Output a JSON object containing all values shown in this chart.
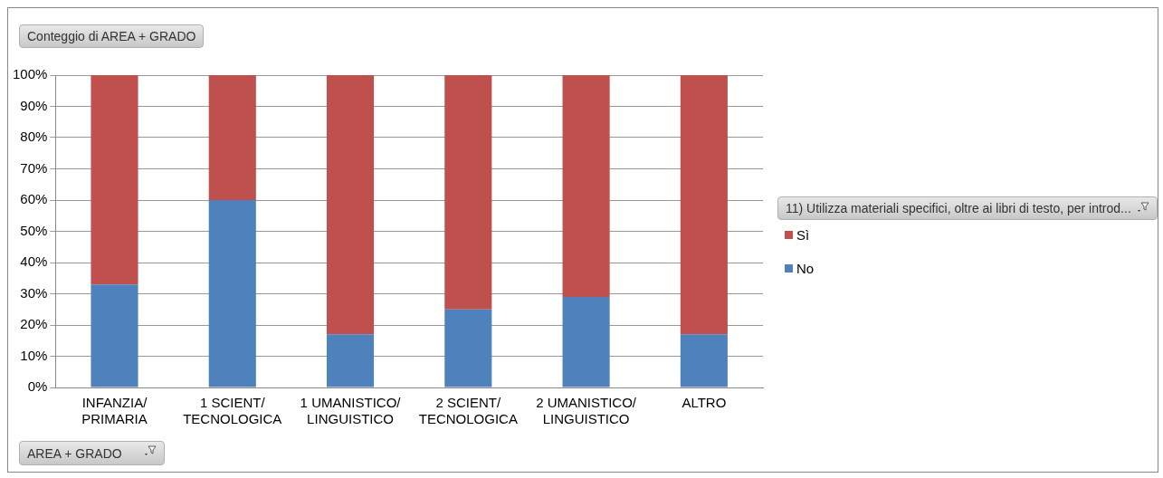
{
  "chart_data": {
    "type": "bar",
    "title": "Conteggio di AREA + GRADO",
    "xlabel": "AREA + GRADO",
    "legend_title": "11) Utilizza materiali specifici, oltre ai libri di testo, per introd...",
    "categories": [
      "INFANZIA/ PRIMARIA",
      "1 SCIENT/ TECNOLOGICA",
      "1 UMANISTICO/ LINGUISTICO",
      "2 SCIENT/ TECNOLOGICA",
      "2 UMANISTICO/ LINGUISTICO",
      "ALTRO"
    ],
    "series": [
      {
        "name": "No",
        "color": "#4f81bd",
        "values": [
          33,
          60,
          17,
          25,
          29,
          17
        ]
      },
      {
        "name": "Sì",
        "color": "#c0504d",
        "values": [
          67,
          40,
          83,
          75,
          71,
          83
        ]
      }
    ],
    "stacked": true,
    "ylim": [
      0,
      100
    ],
    "yticks": [
      {
        "value": 0,
        "label": "0%"
      },
      {
        "value": 10,
        "label": "10%"
      },
      {
        "value": 20,
        "label": "20%"
      },
      {
        "value": 30,
        "label": "30%"
      },
      {
        "value": 40,
        "label": "40%"
      },
      {
        "value": 50,
        "label": "50%"
      },
      {
        "value": 60,
        "label": "60%"
      },
      {
        "value": 70,
        "label": "70%"
      },
      {
        "value": 80,
        "label": "80%"
      },
      {
        "value": 90,
        "label": "90%"
      },
      {
        "value": 100,
        "label": "100%"
      }
    ],
    "grid": "y",
    "legend": "right"
  }
}
